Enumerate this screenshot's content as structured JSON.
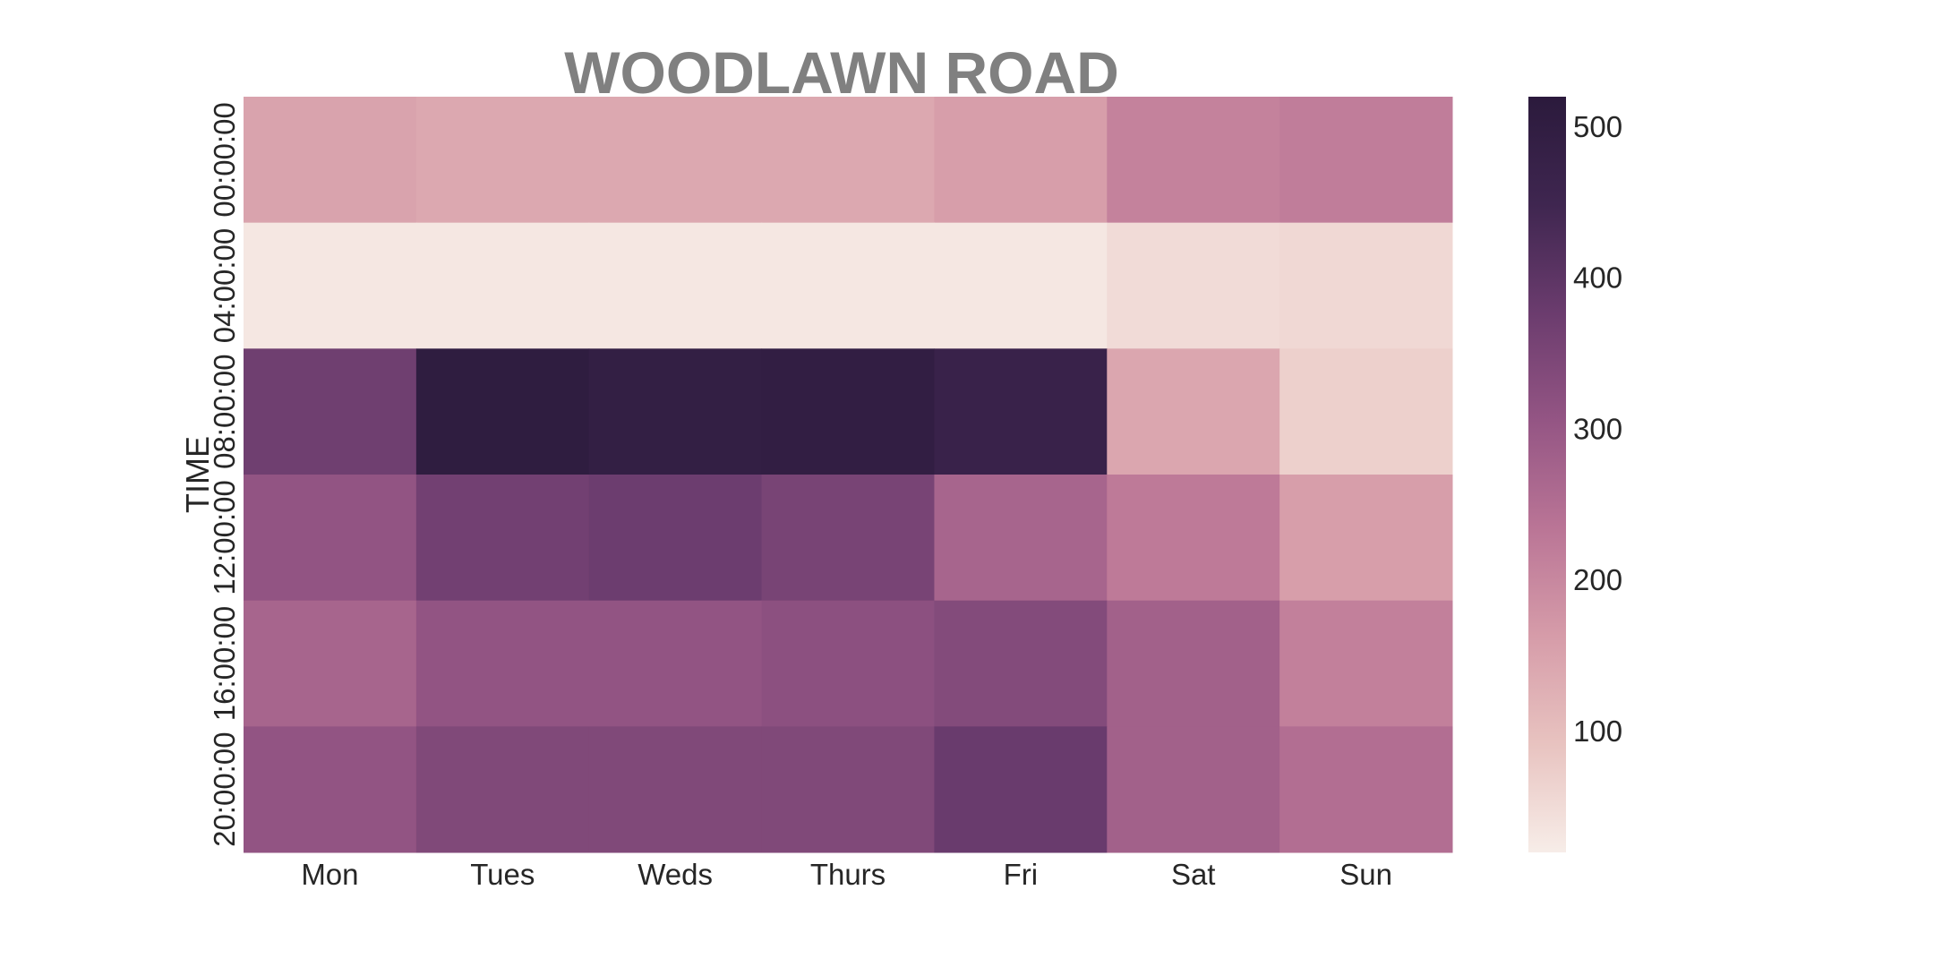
{
  "chart_data": {
    "type": "heatmap",
    "title": "WOODLAWN ROAD",
    "xlabel": "",
    "ylabel": "TIME",
    "x_categories": [
      "Mon",
      "Tues",
      "Weds",
      "Thurs",
      "Fri",
      "Sat",
      "Sun"
    ],
    "y_categories": [
      "00:00:00",
      "04:00:00",
      "08:00:00",
      "12:00:00",
      "16:00:00",
      "20:00:00"
    ],
    "values": [
      [
        150,
        140,
        140,
        140,
        160,
        210,
        220
      ],
      [
        30,
        30,
        30,
        30,
        30,
        50,
        55
      ],
      [
        370,
        505,
        490,
        495,
        470,
        145,
        70
      ],
      [
        310,
        365,
        375,
        355,
        270,
        225,
        160
      ],
      [
        270,
        310,
        310,
        320,
        335,
        280,
        215
      ],
      [
        310,
        340,
        340,
        340,
        380,
        280,
        250
      ]
    ],
    "colorbar": {
      "min": 20,
      "max": 520,
      "ticks": [
        100,
        200,
        300,
        400,
        500
      ],
      "colormap": [
        "#f7ede8",
        "#e8c3c0",
        "#d69ca9",
        "#ba7596",
        "#945584",
        "#6b3c6e",
        "#3f2650",
        "#2b1a3c"
      ]
    },
    "grid": false
  }
}
